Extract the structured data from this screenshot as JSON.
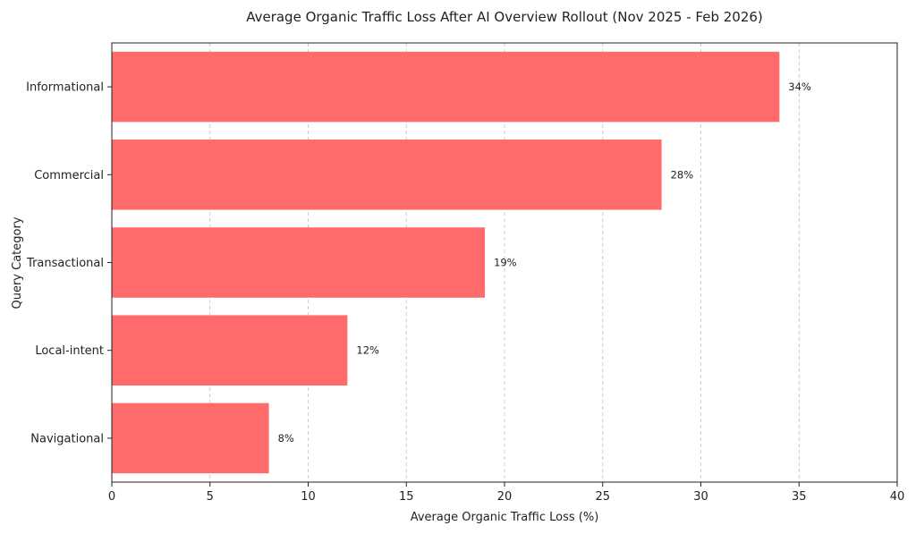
{
  "chart_data": {
    "type": "bar",
    "orientation": "horizontal",
    "title": "Average Organic Traffic Loss After AI Overview Rollout (Nov 2025 - Feb 2026)",
    "xlabel": "Average Organic Traffic Loss (%)",
    "ylabel": "Query Category",
    "categories": [
      "Informational",
      "Commercial",
      "Transactional",
      "Local-intent",
      "Navigational"
    ],
    "values": [
      34,
      28,
      19,
      12,
      8
    ],
    "data_labels": [
      "34%",
      "28%",
      "19%",
      "12%",
      "8%"
    ],
    "xlim": [
      0,
      40
    ],
    "xticks": [
      0,
      5,
      10,
      15,
      20,
      25,
      30,
      35,
      40
    ],
    "grid": "vertical dashed",
    "bar_color": "#ff6b6b"
  }
}
